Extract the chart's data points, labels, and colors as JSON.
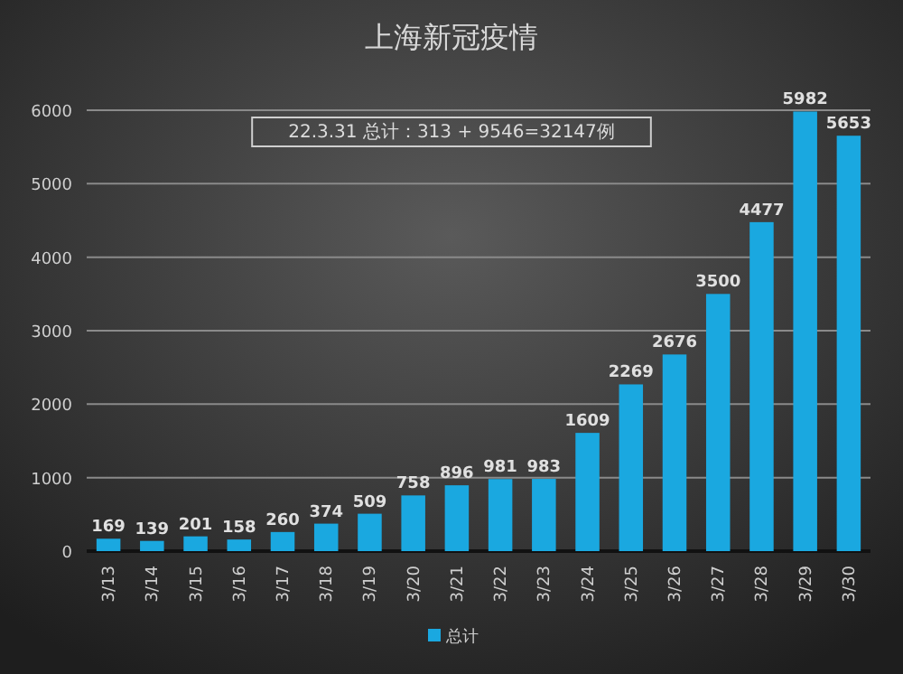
{
  "chart_data": {
    "type": "bar",
    "title": "上海新冠疫情",
    "annotations": [
      "22.3.31 总计：313 + 9546=32147例"
    ],
    "categories": [
      "3/13",
      "3/14",
      "3/15",
      "3/16",
      "3/17",
      "3/18",
      "3/19",
      "3/20",
      "3/21",
      "3/22",
      "3/23",
      "3/24",
      "3/25",
      "3/26",
      "3/27",
      "3/28",
      "3/29",
      "3/30"
    ],
    "series": [
      {
        "name": "总计",
        "color": "#1aa8e0",
        "values": [
          169,
          139,
          201,
          158,
          260,
          374,
          509,
          758,
          896,
          981,
          983,
          1609,
          2269,
          2676,
          3500,
          4477,
          5982,
          5653
        ]
      }
    ],
    "ylim": [
      0,
      6000
    ],
    "yticks": [
      0,
      1000,
      2000,
      3000,
      4000,
      5000,
      6000
    ],
    "grid": "y",
    "legend": "bottom",
    "data_labels": true
  }
}
